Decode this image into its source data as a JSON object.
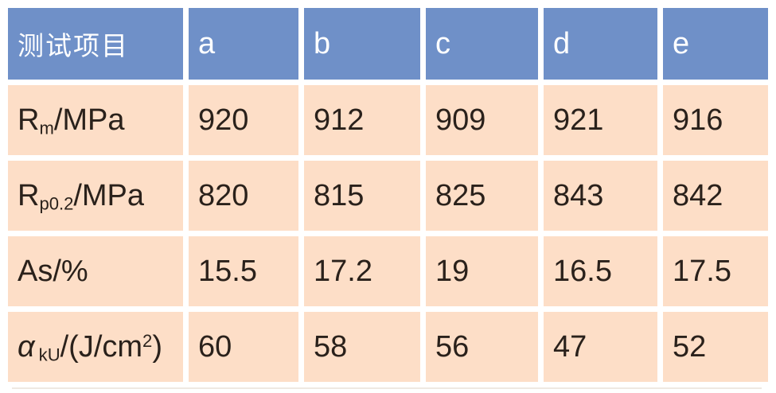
{
  "colors": {
    "header_bg": "#6F90C8",
    "body_bg": "#FDDEC7",
    "header_text": "#FFFFFF",
    "body_text": "#2A211B",
    "grid": "#FFFFFF"
  },
  "chart_data": {
    "type": "table",
    "title": "",
    "columns": [
      "测试项目",
      "a",
      "b",
      "c",
      "d",
      "e"
    ],
    "rows": [
      {
        "label": "Rm/MPa",
        "values": [
          "920",
          "912",
          "909",
          "921",
          "916"
        ]
      },
      {
        "label": "Rp0.2/MPa",
        "values": [
          "820",
          "815",
          "825",
          "843",
          "842"
        ]
      },
      {
        "label": "As/%",
        "values": [
          "15.5",
          "17.2",
          "19",
          "16.5",
          "17.5"
        ]
      },
      {
        "label": "αkU/(J/cm2)",
        "values": [
          "60",
          "58",
          "56",
          "47",
          "52"
        ]
      }
    ]
  },
  "labels_rich": [
    {
      "base": "R",
      "sub": "m",
      "mid": "/MPa",
      "sup": "",
      "tail": ""
    },
    {
      "base": "R",
      "sub": "p0.2",
      "mid": "/MPa",
      "sup": "",
      "tail": ""
    },
    {
      "base": "As/%",
      "sub": "",
      "mid": "",
      "sup": "",
      "tail": ""
    },
    {
      "base": "α",
      "sub": "kU",
      "mid": "/(J/cm",
      "sup": "2",
      "tail": ")"
    }
  ]
}
